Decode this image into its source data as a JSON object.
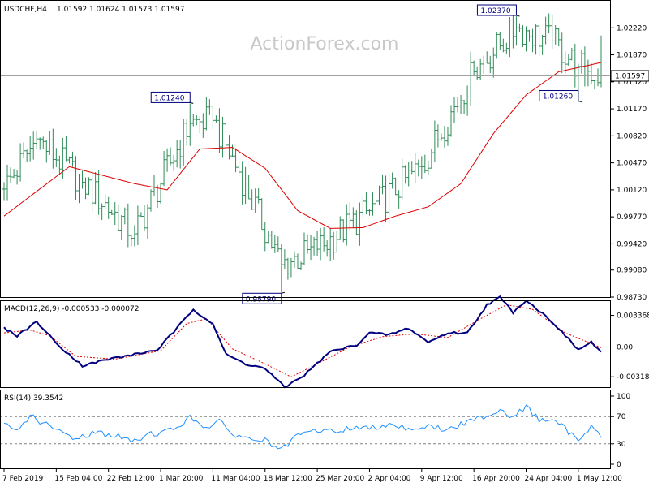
{
  "header": {
    "symbol_label": "USDCHF,H4",
    "ohlc_label": "1.01592 1.01624 1.01573 1.01597",
    "watermark": "ActionForex.com"
  },
  "price_panel": {
    "y_ticks": [
      {
        "label": "1.02220",
        "value": 1.0222
      },
      {
        "label": "1.01870",
        "value": 1.0187
      },
      {
        "label": "1.01520",
        "value": 1.0152
      },
      {
        "label": "1.01170",
        "value": 1.0117
      },
      {
        "label": "1.00820",
        "value": 1.0082
      },
      {
        "label": "1.00470",
        "value": 1.0047
      },
      {
        "label": "1.00120",
        "value": 1.0012
      },
      {
        "label": "0.99770",
        "value": 0.9977
      },
      {
        "label": "0.99420",
        "value": 0.9942
      },
      {
        "label": "0.99080",
        "value": 0.9908
      },
      {
        "label": "0.98730",
        "value": 0.9873
      }
    ],
    "current_price_label": "1.01597",
    "current_price": 1.01597,
    "callouts": [
      {
        "label": "1.01240",
        "value": 1.0124,
        "bar": 57
      },
      {
        "label": "0.98790",
        "value": 0.9879,
        "bar": 85
      },
      {
        "label": "1.02370",
        "value": 1.0237,
        "bar": 157
      },
      {
        "label": "1.01260",
        "value": 1.0126,
        "bar": 176
      }
    ]
  },
  "macd_panel": {
    "title": "MACD(12,26,9) -0.000533 -0.000072",
    "ticks": [
      {
        "label": "0.003368",
        "value": 0.003368
      },
      {
        "label": "0.00",
        "value": 0
      },
      {
        "label": "-0.003181",
        "value": -0.003181
      }
    ]
  },
  "rsi_panel": {
    "title": "RSI(14) 39.3542",
    "ticks": [
      {
        "label": "100",
        "value": 100
      },
      {
        "label": "70",
        "value": 70
      },
      {
        "label": "30",
        "value": 30
      },
      {
        "label": "0",
        "value": 0
      }
    ]
  },
  "x_axis": {
    "labels": [
      {
        "label": "7 Feb 2019",
        "bar": 0
      },
      {
        "label": "15 Feb 04:00",
        "bar": 16
      },
      {
        "label": "22 Feb 12:00",
        "bar": 32
      },
      {
        "label": "1 Mar 20:00",
        "bar": 48
      },
      {
        "label": "11 Mar 04:00",
        "bar": 64
      },
      {
        "label": "18 Mar 12:00",
        "bar": 80
      },
      {
        "label": "25 Mar 20:00",
        "bar": 96
      },
      {
        "label": "2 Apr 04:00",
        "bar": 112
      },
      {
        "label": "9 Apr 12:00",
        "bar": 128
      },
      {
        "label": "16 Apr 20:00",
        "bar": 144
      },
      {
        "label": "24 Apr 04:00",
        "bar": 160
      },
      {
        "label": "1 May 12:00",
        "bar": 176
      }
    ]
  },
  "colors": {
    "background": "#ffffff",
    "frame": "#000000",
    "bars": "#2e8b57",
    "moving_average": "#dd0000",
    "macd_line": "#000080",
    "macd_signal": "#dd0000",
    "rsi_line": "#1e90ff",
    "levels": "#808080",
    "watermark": "#c8c8c8",
    "callout_text": "#000080",
    "label_box": "#ffffff"
  },
  "chart_data": [
    {
      "type": "ohlc",
      "title": "USDCHF,H4",
      "x_start": "7 Feb 2019",
      "x_end": "1 May 12:00",
      "ylim": [
        0.9873,
        1.0257
      ],
      "key_points": [
        {
          "bar": 0,
          "close": 1.0013
        },
        {
          "bar": 10,
          "close": 1.0078
        },
        {
          "bar": 24,
          "close": 1.0022
        },
        {
          "bar": 40,
          "close": 0.9955
        },
        {
          "bar": 57,
          "high": 1.0124,
          "close": 1.0098
        },
        {
          "bar": 64,
          "close": 1.0102
        },
        {
          "bar": 72,
          "close": 1.0035
        },
        {
          "bar": 85,
          "low": 0.9879,
          "close": 0.9915
        },
        {
          "bar": 96,
          "close": 0.9935
        },
        {
          "bar": 112,
          "close": 0.9985
        },
        {
          "bar": 128,
          "close": 1.0042
        },
        {
          "bar": 144,
          "close": 1.0165
        },
        {
          "bar": 157,
          "high": 1.0237,
          "close": 1.0222
        },
        {
          "bar": 168,
          "close": 1.0205
        },
        {
          "bar": 176,
          "low": 1.0126,
          "close": 1.0172
        },
        {
          "bar": 183,
          "high": 1.0212,
          "close": 1.01597
        }
      ],
      "moving_average": [
        {
          "bar": 0,
          "value": 0.9978
        },
        {
          "bar": 20,
          "value": 1.0042
        },
        {
          "bar": 40,
          "value": 1.002
        },
        {
          "bar": 50,
          "value": 1.0012
        },
        {
          "bar": 60,
          "value": 1.0065
        },
        {
          "bar": 70,
          "value": 1.0067
        },
        {
          "bar": 80,
          "value": 1.004
        },
        {
          "bar": 90,
          "value": 0.9985
        },
        {
          "bar": 100,
          "value": 0.9962
        },
        {
          "bar": 110,
          "value": 0.9963
        },
        {
          "bar": 120,
          "value": 0.9978
        },
        {
          "bar": 130,
          "value": 0.999
        },
        {
          "bar": 140,
          "value": 1.002
        },
        {
          "bar": 150,
          "value": 1.0085
        },
        {
          "bar": 160,
          "value": 1.0135
        },
        {
          "bar": 170,
          "value": 1.0165
        },
        {
          "bar": 183,
          "value": 1.0177
        }
      ]
    },
    {
      "type": "line",
      "title": "MACD(12,26,9)",
      "ylim": [
        -0.0042,
        0.0048
      ],
      "macd": [
        {
          "bar": 0,
          "value": 0.002
        },
        {
          "bar": 4,
          "value": 0.0012
        },
        {
          "bar": 10,
          "value": 0.0027
        },
        {
          "bar": 16,
          "value": 0.0004
        },
        {
          "bar": 24,
          "value": -0.002
        },
        {
          "bar": 32,
          "value": -0.0013
        },
        {
          "bar": 40,
          "value": -0.0008
        },
        {
          "bar": 47,
          "value": -0.0003
        },
        {
          "bar": 52,
          "value": 0.0016
        },
        {
          "bar": 58,
          "value": 0.004
        },
        {
          "bar": 64,
          "value": 0.0025
        },
        {
          "bar": 68,
          "value": -0.0008
        },
        {
          "bar": 74,
          "value": -0.0018
        },
        {
          "bar": 80,
          "value": -0.0023
        },
        {
          "bar": 86,
          "value": -0.0043
        },
        {
          "bar": 92,
          "value": -0.003
        },
        {
          "bar": 100,
          "value": -0.0005
        },
        {
          "bar": 108,
          "value": 0.0002
        },
        {
          "bar": 112,
          "value": 0.0015
        },
        {
          "bar": 118,
          "value": 0.0013
        },
        {
          "bar": 124,
          "value": 0.002
        },
        {
          "bar": 130,
          "value": 0.0005
        },
        {
          "bar": 136,
          "value": 0.0015
        },
        {
          "bar": 142,
          "value": 0.0015
        },
        {
          "bar": 148,
          "value": 0.0045
        },
        {
          "bar": 152,
          "value": 0.0053
        },
        {
          "bar": 156,
          "value": 0.0037
        },
        {
          "bar": 160,
          "value": 0.005
        },
        {
          "bar": 168,
          "value": 0.0027
        },
        {
          "bar": 176,
          "value": -0.0003
        },
        {
          "bar": 180,
          "value": 0.0005
        },
        {
          "bar": 183,
          "value": -0.000533
        }
      ],
      "signal": [
        {
          "bar": 0,
          "value": 0.0015
        },
        {
          "bar": 8,
          "value": 0.0018
        },
        {
          "bar": 14,
          "value": 0.0012
        },
        {
          "bar": 22,
          "value": -0.001
        },
        {
          "bar": 34,
          "value": -0.0013
        },
        {
          "bar": 48,
          "value": -0.0004
        },
        {
          "bar": 56,
          "value": 0.0025
        },
        {
          "bar": 62,
          "value": 0.003
        },
        {
          "bar": 70,
          "value": -0.0002
        },
        {
          "bar": 80,
          "value": -0.0018
        },
        {
          "bar": 88,
          "value": -0.0032
        },
        {
          "bar": 96,
          "value": -0.0018
        },
        {
          "bar": 106,
          "value": 0.0
        },
        {
          "bar": 116,
          "value": 0.0011
        },
        {
          "bar": 126,
          "value": 0.0014
        },
        {
          "bar": 136,
          "value": 0.001
        },
        {
          "bar": 146,
          "value": 0.003
        },
        {
          "bar": 154,
          "value": 0.0045
        },
        {
          "bar": 162,
          "value": 0.004
        },
        {
          "bar": 172,
          "value": 0.0015
        },
        {
          "bar": 183,
          "value": -7.2e-05
        }
      ]
    },
    {
      "type": "line",
      "title": "RSI(14)",
      "ylim": [
        0,
        100
      ],
      "levels": [
        70,
        30
      ],
      "rsi": [
        {
          "bar": 0,
          "value": 58
        },
        {
          "bar": 4,
          "value": 48
        },
        {
          "bar": 8,
          "value": 72
        },
        {
          "bar": 12,
          "value": 60
        },
        {
          "bar": 16,
          "value": 50
        },
        {
          "bar": 22,
          "value": 38
        },
        {
          "bar": 28,
          "value": 47
        },
        {
          "bar": 34,
          "value": 42
        },
        {
          "bar": 40,
          "value": 33
        },
        {
          "bar": 44,
          "value": 45
        },
        {
          "bar": 48,
          "value": 46
        },
        {
          "bar": 52,
          "value": 52
        },
        {
          "bar": 57,
          "value": 68
        },
        {
          "bar": 62,
          "value": 55
        },
        {
          "bar": 66,
          "value": 62
        },
        {
          "bar": 70,
          "value": 45
        },
        {
          "bar": 74,
          "value": 38
        },
        {
          "bar": 80,
          "value": 35
        },
        {
          "bar": 85,
          "value": 20
        },
        {
          "bar": 90,
          "value": 42
        },
        {
          "bar": 96,
          "value": 50
        },
        {
          "bar": 102,
          "value": 48
        },
        {
          "bar": 108,
          "value": 55
        },
        {
          "bar": 112,
          "value": 52
        },
        {
          "bar": 118,
          "value": 60
        },
        {
          "bar": 124,
          "value": 52
        },
        {
          "bar": 130,
          "value": 56
        },
        {
          "bar": 136,
          "value": 50
        },
        {
          "bar": 142,
          "value": 62
        },
        {
          "bar": 148,
          "value": 72
        },
        {
          "bar": 152,
          "value": 80
        },
        {
          "bar": 156,
          "value": 70
        },
        {
          "bar": 160,
          "value": 84
        },
        {
          "bar": 164,
          "value": 66
        },
        {
          "bar": 170,
          "value": 60
        },
        {
          "bar": 176,
          "value": 35
        },
        {
          "bar": 180,
          "value": 58
        },
        {
          "bar": 183,
          "value": 39.3542
        }
      ]
    }
  ]
}
